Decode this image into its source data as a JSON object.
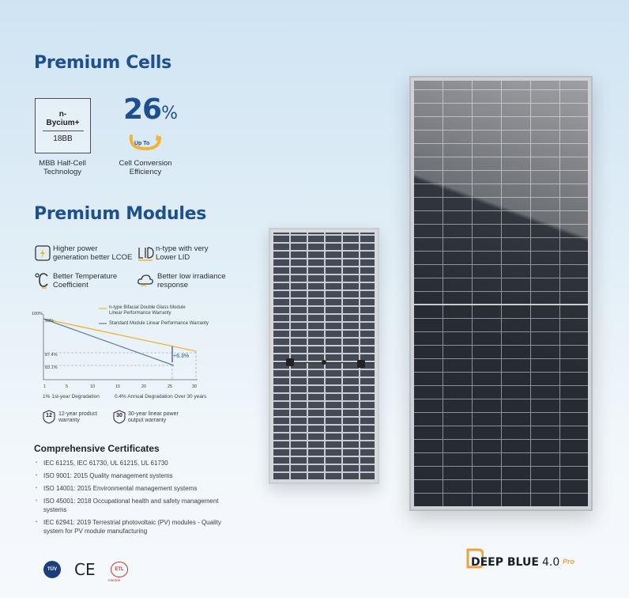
{
  "headings": {
    "premium_cells": "Premium Cells",
    "premium_modules": "Premium Modules",
    "certificates": "Comprehensive Certificates"
  },
  "cells": {
    "box_line1": "n-",
    "box_line2": "Bycium+",
    "box_line3": "18BB",
    "box_caption_1": "MBB Half-Cell",
    "box_caption_2": "Technology",
    "efficiency_value": "26",
    "efficiency_unit": "%",
    "up_to": "Up To",
    "efficiency_caption_1": "Cell Conversion",
    "efficiency_caption_2": "Efficiency"
  },
  "features": [
    {
      "line1": "Higher power",
      "line2": "generation better LCOE",
      "icon": "lightning-icon"
    },
    {
      "line1": "n-type with very",
      "line2": "Lower LID",
      "icon": "lid-icon"
    },
    {
      "line1": "Better Temperature",
      "line2": "Coefficient",
      "icon": "thermometer-icon"
    },
    {
      "line1": "Better low irradiance",
      "line2": "response",
      "icon": "cloud-icon"
    }
  ],
  "warranty_chart": {
    "y_top_label": "100%",
    "legend": [
      {
        "line1": "n-type Bifacial Double Glass Module",
        "line2": "Linear Performance Warranty",
        "color": "#f0b43a"
      },
      {
        "line1": "Standard Module Linear Performance Warranty",
        "line2": "",
        "color": "#5b7fa6"
      }
    ],
    "point_labels": {
      "start": "99%",
      "mid": "87.4%",
      "low": "83.1%"
    },
    "delta_label": "+6.3%",
    "x_ticks": [
      "1",
      "5",
      "10",
      "15",
      "20",
      "25",
      "30"
    ],
    "caption_left": "1% 1st-year Degradation",
    "caption_right": "0.4% Annual Degradation Over 30 years"
  },
  "warranties": [
    {
      "badge": "12",
      "line1": "12-year product",
      "line2": "warranty"
    },
    {
      "badge": "30",
      "line1": "30-year linear power",
      "line2": "output warranty"
    }
  ],
  "certificates": [
    "IEC 61215, IEC 61730, UL 61215, UL 61730",
    "ISO 9001: 2015 Quality management systems",
    "ISO 14001: 2015 Environmental management systems",
    "ISO 45001: 2018 Occupational health and safety management systems",
    "IEC 62941: 2019 Terrestrial photovoltaic (PV) modules - Quality system for PV module manufacturing"
  ],
  "logos": {
    "ce": "CE",
    "tuv": "TÜV",
    "etl": "ETL",
    "etl_sub": "Intertek"
  },
  "brand": {
    "name": "DEEP BLUE",
    "version": "4.0",
    "badge": "Pro"
  }
}
